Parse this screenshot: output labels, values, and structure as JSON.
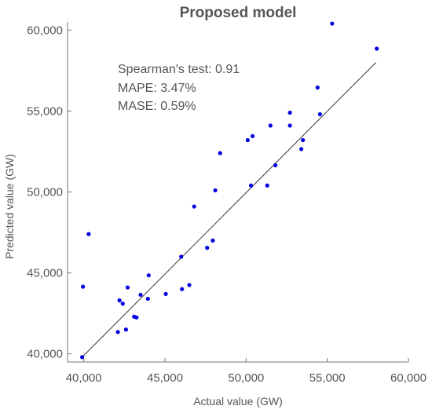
{
  "chart_data": {
    "type": "scatter",
    "title": "Proposed model",
    "xlabel": "Actual value (GW)",
    "ylabel": "Predicted value (GW)",
    "xlim": [
      39000,
      60000
    ],
    "ylim": [
      39500,
      60500
    ],
    "x_ticks": [
      40000,
      45000,
      50000,
      55000,
      60000
    ],
    "y_ticks": [
      40000,
      45000,
      50000,
      55000,
      60000
    ],
    "x_tick_labels": [
      "40,000",
      "45,000",
      "50,000",
      "55,000",
      "60,000"
    ],
    "y_tick_labels": [
      "40,000",
      "45,000",
      "50,000",
      "55,000",
      "60,000"
    ],
    "grid": false,
    "point_color": "#0000dd",
    "line_color": "#555555",
    "annotations": [
      "Spearman's test: 0.91",
      "MAPE: 3.47%",
      "MASE: 0.59%"
    ],
    "fit_line": {
      "x": [
        39900,
        58000
      ],
      "y": [
        39800,
        58000
      ]
    },
    "points": [
      {
        "x": 39900,
        "y": 39800
      },
      {
        "x": 39950,
        "y": 44150
      },
      {
        "x": 40300,
        "y": 47400
      },
      {
        "x": 42100,
        "y": 41350
      },
      {
        "x": 42200,
        "y": 43300
      },
      {
        "x": 42400,
        "y": 43100
      },
      {
        "x": 42600,
        "y": 41500
      },
      {
        "x": 42700,
        "y": 44100
      },
      {
        "x": 43100,
        "y": 42300
      },
      {
        "x": 43250,
        "y": 42250
      },
      {
        "x": 43500,
        "y": 43650
      },
      {
        "x": 43950,
        "y": 43400
      },
      {
        "x": 44000,
        "y": 44850
      },
      {
        "x": 45050,
        "y": 43700
      },
      {
        "x": 46050,
        "y": 44000
      },
      {
        "x": 46000,
        "y": 46000
      },
      {
        "x": 46500,
        "y": 44250
      },
      {
        "x": 46800,
        "y": 49100
      },
      {
        "x": 47600,
        "y": 46550
      },
      {
        "x": 47950,
        "y": 47000
      },
      {
        "x": 48100,
        "y": 50100
      },
      {
        "x": 48400,
        "y": 52400
      },
      {
        "x": 50100,
        "y": 53200
      },
      {
        "x": 50300,
        "y": 50400
      },
      {
        "x": 50400,
        "y": 53450
      },
      {
        "x": 51300,
        "y": 50400
      },
      {
        "x": 51500,
        "y": 54100
      },
      {
        "x": 51800,
        "y": 51650
      },
      {
        "x": 52700,
        "y": 54900
      },
      {
        "x": 52700,
        "y": 54100
      },
      {
        "x": 53400,
        "y": 52650
      },
      {
        "x": 53500,
        "y": 53200
      },
      {
        "x": 54400,
        "y": 56450
      },
      {
        "x": 54550,
        "y": 54800
      },
      {
        "x": 55300,
        "y": 60400
      },
      {
        "x": 58050,
        "y": 58850
      }
    ]
  }
}
